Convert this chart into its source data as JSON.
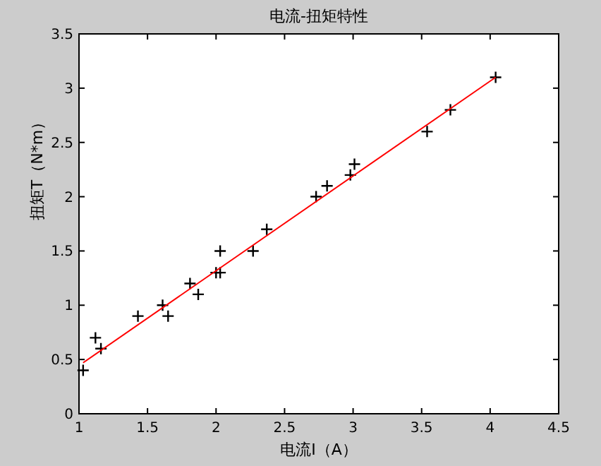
{
  "chart_data": {
    "type": "scatter",
    "title": "电流-扭矩特性",
    "xlabel": "电流I（A）",
    "ylabel": "扭矩T（N*m）",
    "xlim": [
      1,
      4.5
    ],
    "xticks": [
      1,
      1.5,
      2,
      2.5,
      3,
      3.5,
      4,
      4.5
    ],
    "ylim": [
      0,
      3.5
    ],
    "yticks": [
      0,
      0.5,
      1,
      1.5,
      2,
      2.5,
      3,
      3.5
    ],
    "grid": false,
    "series": [
      {
        "color": "#000000",
        "marker": "cross",
        "x": [
          1.03,
          1.12,
          1.16,
          1.43,
          1.61,
          1.65,
          1.81,
          1.87,
          2.0,
          2.03,
          2.03,
          2.27,
          2.37,
          2.73,
          2.81,
          2.98,
          3.01,
          3.54,
          3.71,
          4.04
        ],
        "values": [
          0.4,
          0.7,
          0.6,
          0.9,
          1.0,
          0.9,
          1.2,
          1.1,
          1.3,
          1.3,
          1.5,
          1.5,
          1.7,
          2.0,
          2.1,
          2.2,
          2.3,
          2.6,
          2.8,
          3.1
        ]
      },
      {
        "type": "line",
        "color": "#ff0000",
        "line_style": "solid",
        "x": [
          1.03,
          4.04
        ],
        "values": [
          0.47,
          3.1
        ]
      }
    ]
  }
}
